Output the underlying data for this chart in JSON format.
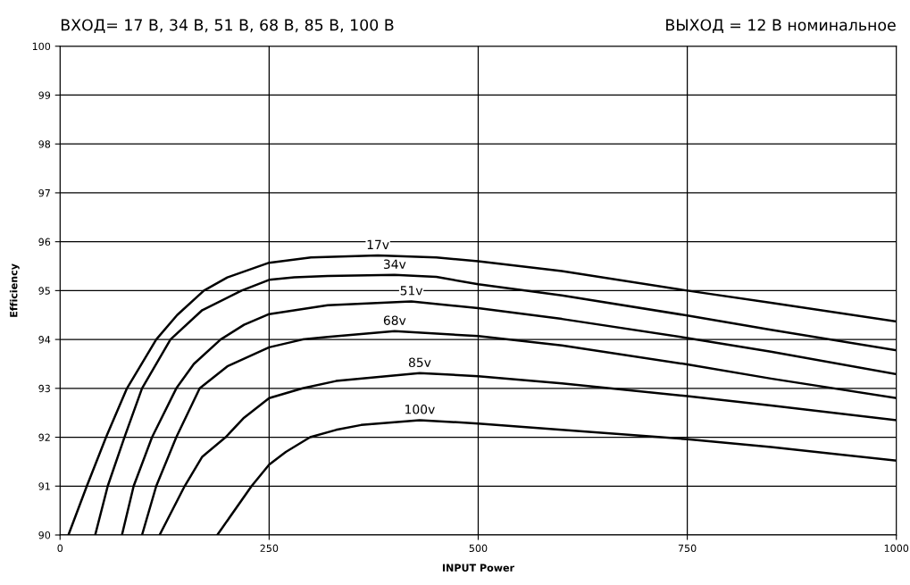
{
  "chart_data": {
    "type": "line",
    "title": "ВХОД= 17 В, 34 В, 51 В, 68 В, 85 В, 100 В",
    "subtitle": "ВЫХОД = 12 В номинальное",
    "xlabel": "INPUT Power",
    "ylabel": "Efficiency",
    "xlim": [
      0,
      1000
    ],
    "xticks": [
      0,
      250,
      500,
      750,
      1000
    ],
    "ylim": [
      90,
      100
    ],
    "yticks": [
      90,
      91,
      92,
      93,
      94,
      95,
      96,
      97,
      98,
      99,
      100
    ],
    "grid": true,
    "legend": false,
    "marker": "none",
    "line_style": "solid",
    "series": [
      {
        "name": "17v",
        "color": "#000000",
        "x": [
          10,
          32,
          55,
          80,
          115,
          140,
          172,
          200,
          250,
          300,
          380,
          450,
          500,
          600,
          750,
          850,
          1000
        ],
        "values": [
          90,
          91,
          92,
          93,
          94,
          94.5,
          95,
          95.27,
          95.57,
          95.68,
          95.72,
          95.68,
          95.6,
          95.4,
          95.0,
          94.75,
          94.37
        ]
      },
      {
        "name": "34v",
        "color": "#000000",
        "x": [
          42,
          57,
          77,
          98,
          132,
          170,
          217,
          250,
          280,
          320,
          400,
          450,
          500,
          600,
          750,
          850,
          1000
        ],
        "values": [
          90,
          91,
          92,
          93,
          94,
          94.6,
          95,
          95.22,
          95.27,
          95.3,
          95.32,
          95.28,
          95.13,
          94.9,
          94.49,
          94.2,
          93.78
        ]
      },
      {
        "name": "51v",
        "color": "#000000",
        "x": [
          74,
          88,
          110,
          139,
          160,
          192,
          220,
          250,
          320,
          420,
          500,
          600,
          750,
          850,
          1000
        ],
        "values": [
          90,
          91,
          92,
          93,
          93.5,
          94,
          94.3,
          94.52,
          94.7,
          94.78,
          94.64,
          94.42,
          94.03,
          93.75,
          93.29
        ]
      },
      {
        "name": "68v",
        "color": "#000000",
        "x": [
          98,
          115,
          139,
          167,
          200,
          250,
          290,
          320,
          400,
          500,
          600,
          750,
          850,
          1000
        ],
        "values": [
          90,
          91,
          92,
          93,
          93.45,
          93.84,
          94.0,
          94.05,
          94.17,
          94.07,
          93.88,
          93.49,
          93.2,
          92.8
        ]
      },
      {
        "name": "85v",
        "color": "#000000",
        "x": [
          119,
          149,
          170,
          198,
          220,
          250,
          290,
          330,
          430,
          500,
          600,
          750,
          850,
          1000
        ],
        "values": [
          90,
          91,
          91.6,
          92,
          92.4,
          92.8,
          93.0,
          93.15,
          93.31,
          93.25,
          93.1,
          92.84,
          92.65,
          92.35
        ]
      },
      {
        "name": "100v",
        "color": "#000000",
        "x": [
          188,
          229,
          250,
          270,
          299,
          330,
          360,
          430,
          500,
          600,
          750,
          850,
          1000
        ],
        "values": [
          90,
          91,
          91.44,
          91.7,
          92,
          92.15,
          92.25,
          92.35,
          92.28,
          92.15,
          91.96,
          91.8,
          91.52
        ]
      }
    ]
  }
}
